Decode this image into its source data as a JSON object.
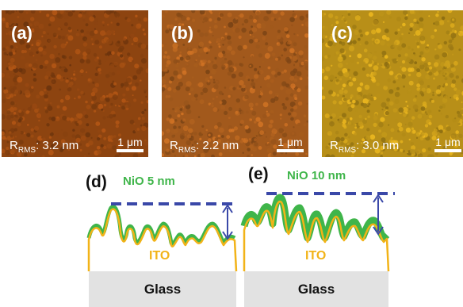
{
  "afm": [
    {
      "tag": "(a)",
      "rms_prefix": "R",
      "rms_sub": "RMS",
      "rms_value": ": 3.2 nm",
      "scale": "1 μm",
      "color": "#8d4410"
    },
    {
      "tag": "(b)",
      "rms_prefix": "R",
      "rms_sub": "RMS",
      "rms_value": ": 2.2 nm",
      "scale": "1 μm",
      "color": "#a2591c"
    },
    {
      "tag": "(c)",
      "rms_prefix": "R",
      "rms_sub": "RMS",
      "rms_value": ": 3.0 nm",
      "scale": "1 μm",
      "color": "#b88f18"
    }
  ],
  "schematics": [
    {
      "tag": "(d)",
      "film": "NiO 5 nm",
      "ito": "ITO",
      "substrate": "Glass"
    },
    {
      "tag": "(e)",
      "film": "NiO 10 nm",
      "ito": "ITO",
      "substrate": "Glass"
    }
  ],
  "colors": {
    "nio": "#3fb54a",
    "ito": "#f2b318",
    "arrow": "#3a48a8",
    "glass": "#e2e2e2"
  }
}
